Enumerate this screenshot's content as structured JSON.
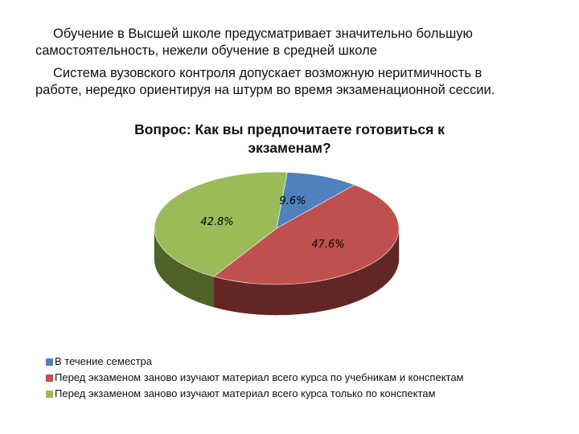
{
  "text": {
    "para1_line1": "Обучение в Высшей школе предусматривает значительно большую",
    "para1_line2": "самостоятельность, нежели обучение в средней школе",
    "para2_line1": "Система вузовского контроля допускает возможную неритмичность в",
    "para2_line2": "работе, нередко ориентируя на штурм во время экзаменационной сессии."
  },
  "chart_data": {
    "type": "pie",
    "style": "3d",
    "title_line1": "Вопрос: Как вы предпочитаете готовиться к",
    "title_line2": "экзаменам?",
    "legend_position": "bottom-left",
    "slices": [
      {
        "name": "В течение семестра",
        "value": 9.6,
        "label": "9.6%",
        "color": "#4f81bd",
        "side_color": "#2e4d73"
      },
      {
        "name": "Перед экзаменом заново изучают материал всего курса по учебникам и конспектам",
        "value": 47.6,
        "label": "47.6%",
        "color": "#c0504d",
        "side_color": "#632626"
      },
      {
        "name": "Перед экзаменом заново изучают материал всего курса только по конспектам",
        "value": 42.8,
        "label": "42.8%",
        "color": "#9bbb59",
        "side_color": "#4f6228"
      }
    ]
  }
}
